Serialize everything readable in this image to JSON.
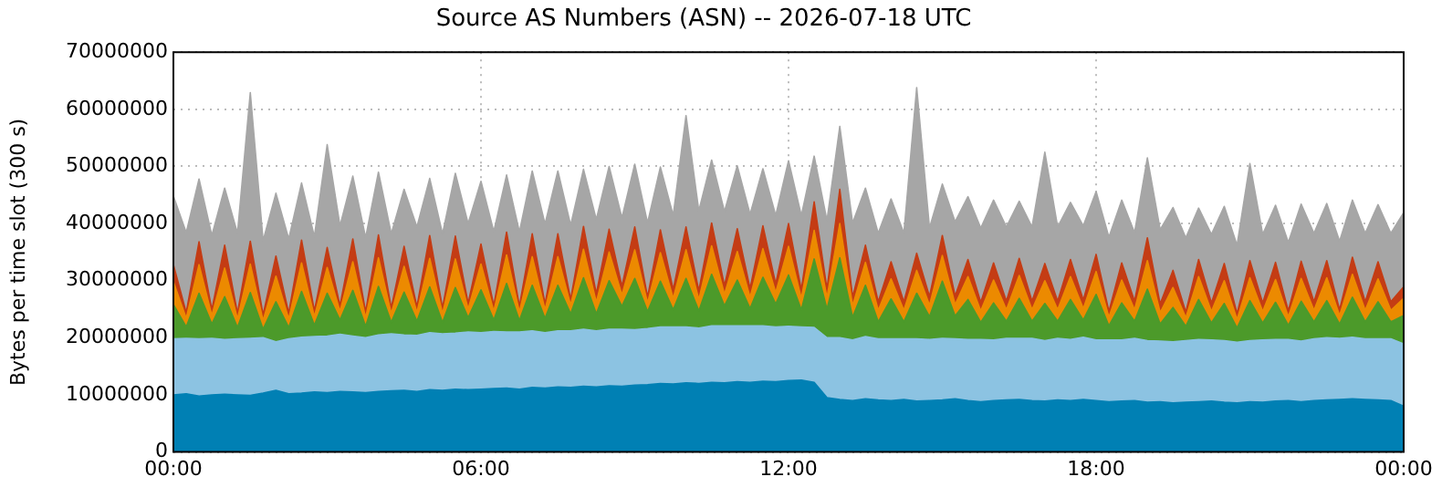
{
  "chart_data": {
    "type": "area",
    "stacked": true,
    "title": "Source AS Numbers (ASN) -- 2026-07-18 UTC",
    "ylabel": "Bytes per time slot (300 s)",
    "x": [
      0,
      0.25,
      0.5,
      0.75,
      1,
      1.25,
      1.5,
      1.75,
      2,
      2.25,
      2.5,
      2.75,
      3,
      3.25,
      3.5,
      3.75,
      4,
      4.25,
      4.5,
      4.75,
      5,
      5.25,
      5.5,
      5.75,
      6,
      6.25,
      6.5,
      6.75,
      7,
      7.25,
      7.5,
      7.75,
      8,
      8.25,
      8.5,
      8.75,
      9,
      9.25,
      9.5,
      9.75,
      10,
      10.25,
      10.5,
      10.75,
      11,
      11.25,
      11.5,
      11.75,
      12,
      12.25,
      12.5,
      12.75,
      13,
      13.25,
      13.5,
      13.75,
      14,
      14.25,
      14.5,
      14.75,
      15,
      15.25,
      15.5,
      15.75,
      16,
      16.25,
      16.5,
      16.75,
      17,
      17.25,
      17.5,
      17.75,
      18,
      18.25,
      18.5,
      18.75,
      19,
      19.25,
      19.5,
      19.75,
      20,
      20.25,
      20.5,
      20.75,
      21,
      21.25,
      21.5,
      21.75,
      22,
      22.25,
      22.5,
      22.75,
      23,
      23.25,
      23.5,
      23.75,
      24
    ],
    "series": [
      {
        "color": "#0080b4",
        "values": [
          10000000.0,
          10200000.0,
          9800000.0,
          10000000.0,
          10100000.0,
          10000000.0,
          9900000.0,
          10300000.0,
          10800000.0,
          10200000.0,
          10300000.0,
          10500000.0,
          10400000.0,
          10600000.0,
          10500000.0,
          10400000.0,
          10600000.0,
          10700000.0,
          10800000.0,
          10600000.0,
          10900000.0,
          10800000.0,
          11000000.0,
          10900000.0,
          11000000.0,
          11100000.0,
          11200000.0,
          11000000.0,
          11300000.0,
          11200000.0,
          11400000.0,
          11300000.0,
          11500000.0,
          11400000.0,
          11600000.0,
          11500000.0,
          11700000.0,
          11800000.0,
          12000000.0,
          11900000.0,
          12100000.0,
          12000000.0,
          12200000.0,
          12100000.0,
          12300000.0,
          12200000.0,
          12400000.0,
          12300000.0,
          12500000.0,
          12600000.0,
          12200000.0,
          9500000.0,
          9200000.0,
          9000000.0,
          9300000.0,
          9100000.0,
          9000000.0,
          9200000.0,
          8900000.0,
          9000000.0,
          9100000.0,
          9300000.0,
          9000000.0,
          8800000.0,
          9000000.0,
          9100000.0,
          9200000.0,
          9000000.0,
          8900000.0,
          9100000.0,
          9000000.0,
          9200000.0,
          9000000.0,
          8800000.0,
          8900000.0,
          9000000.0,
          8700000.0,
          8800000.0,
          8600000.0,
          8700000.0,
          8800000.0,
          8900000.0,
          8700000.0,
          8600000.0,
          8800000.0,
          8700000.0,
          8900000.0,
          9000000.0,
          8800000.0,
          9000000.0,
          9100000.0,
          9200000.0,
          9300000.0,
          9200000.0,
          9100000.0,
          9000000.0,
          8000000.0
        ]
      },
      {
        "color": "#8cc3e2",
        "values": [
          9800000.0,
          9700000.0,
          10000000.0,
          9900000.0,
          9600000.0,
          9800000.0,
          10000000.0,
          9700000.0,
          8500000.0,
          9600000.0,
          9800000.0,
          9700000.0,
          9900000.0,
          10000000.0,
          9800000.0,
          9600000.0,
          9900000.0,
          10000000.0,
          9700000.0,
          9800000.0,
          10000000.0,
          9900000.0,
          9800000.0,
          10100000.0,
          9900000.0,
          10000000.0,
          9800000.0,
          10000000.0,
          9900000.0,
          9700000.0,
          9800000.0,
          9900000.0,
          10000000.0,
          9800000.0,
          9900000.0,
          10000000.0,
          9700000.0,
          9800000.0,
          9900000.0,
          10000000.0,
          9800000.0,
          9700000.0,
          9900000.0,
          10000000.0,
          9800000.0,
          9900000.0,
          9700000.0,
          9600000.0,
          9500000.0,
          9300000.0,
          9600000.0,
          10500000.0,
          10800000.0,
          10600000.0,
          10900000.0,
          10700000.0,
          10800000.0,
          10600000.0,
          10900000.0,
          10700000.0,
          10800000.0,
          10500000.0,
          10700000.0,
          10900000.0,
          10600000.0,
          10800000.0,
          10700000.0,
          10900000.0,
          10600000.0,
          10800000.0,
          10700000.0,
          10900000.0,
          10600000.0,
          10800000.0,
          10700000.0,
          10900000.0,
          10800000.0,
          10600000.0,
          10700000.0,
          10800000.0,
          10900000.0,
          10700000.0,
          10800000.0,
          10600000.0,
          10700000.0,
          10900000.0,
          10800000.0,
          10700000.0,
          10600000.0,
          10800000.0,
          10900000.0,
          10700000.0,
          10800000.0,
          10600000.0,
          10700000.0,
          10800000.0,
          10900000.0
        ]
      },
      {
        "color": "#4c9a2a",
        "values": [
          6000000.0,
          2000000.0,
          8000000.0,
          2500000.0,
          7500000.0,
          2000000.0,
          8000000.0,
          1500000.0,
          7000000.0,
          2000000.0,
          8000000.0,
          2000000.0,
          7500000.0,
          2500000.0,
          8000000.0,
          2000000.0,
          8500000.0,
          2000000.0,
          7500000.0,
          2500000.0,
          8000000.0,
          2000000.0,
          8000000.0,
          2500000.0,
          7500000.0,
          2000000.0,
          8500000.0,
          2000000.0,
          8000000.0,
          2500000.0,
          8000000.0,
          3000000.0,
          9000000.0,
          3000000.0,
          8500000.0,
          4000000.0,
          9000000.0,
          3000000.0,
          8000000.0,
          3000000.0,
          8500000.0,
          3000000.0,
          9000000.0,
          3500000.0,
          8000000.0,
          3000000.0,
          8500000.0,
          4000000.0,
          9000000.0,
          3000000.0,
          12000000.0,
          5000000.0,
          14000000.0,
          4000000.0,
          9000000.0,
          3000000.0,
          7000000.0,
          3000000.0,
          8000000.0,
          4000000.0,
          10000000.0,
          4000000.0,
          7000000.0,
          3000000.0,
          6500000.0,
          3000000.0,
          7000000.0,
          3000000.0,
          6500000.0,
          3000000.0,
          7000000.0,
          3000000.0,
          8000000.0,
          2500000.0,
          6500000.0,
          3000000.0,
          9000000.0,
          3000000.0,
          6000000.0,
          2500000.0,
          7000000.0,
          3000000.0,
          6500000.0,
          2500000.0,
          7000000.0,
          3000000.0,
          6500000.0,
          2500000.0,
          7000000.0,
          3000000.0,
          6500000.0,
          2500000.0,
          7000000.0,
          3000000.0,
          6500000.0,
          3000000.0,
          5000000.0
        ]
      },
      {
        "color": "#ec8a00",
        "values": [
          4000000.0,
          1500000.0,
          5000000.0,
          1500000.0,
          5000000.0,
          1500000.0,
          5000000.0,
          1500000.0,
          4500000.0,
          1500000.0,
          5000000.0,
          1500000.0,
          4500000.0,
          1500000.0,
          5000000.0,
          1500000.0,
          5000000.0,
          1500000.0,
          4500000.0,
          1500000.0,
          5000000.0,
          1500000.0,
          5000000.0,
          1500000.0,
          4500000.0,
          1500000.0,
          5000000.0,
          1500000.0,
          5000000.0,
          1500000.0,
          5000000.0,
          1500000.0,
          5000000.0,
          2000000.0,
          5000000.0,
          2000000.0,
          5000000.0,
          1500000.0,
          5000000.0,
          2000000.0,
          5000000.0,
          2000000.0,
          5000000.0,
          2000000.0,
          5000000.0,
          2000000.0,
          5000000.0,
          2000000.0,
          5000000.0,
          2000000.0,
          5000000.0,
          2000000.0,
          6000000.0,
          2000000.0,
          4000000.0,
          2000000.0,
          3500000.0,
          2000000.0,
          4000000.0,
          2000000.0,
          4500000.0,
          2000000.0,
          4000000.0,
          2000000.0,
          4000000.0,
          2000000.0,
          4000000.0,
          2000000.0,
          4000000.0,
          2000000.0,
          4000000.0,
          2000000.0,
          4000000.0,
          1500000.0,
          4000000.0,
          2000000.0,
          5000000.0,
          2000000.0,
          3500000.0,
          1500000.0,
          4000000.0,
          2000000.0,
          4000000.0,
          1500000.0,
          4000000.0,
          2000000.0,
          4000000.0,
          1500000.0,
          4000000.0,
          2000000.0,
          4000000.0,
          1500000.0,
          4000000.0,
          2000000.0,
          4000000.0,
          2000000.0,
          3000000.0
        ]
      },
      {
        "color": "#c43c14",
        "values": [
          3000000.0,
          1000000.0,
          4000000.0,
          1000000.0,
          4000000.0,
          1000000.0,
          4000000.0,
          1000000.0,
          3500000.0,
          1000000.0,
          4000000.0,
          1000000.0,
          3500000.0,
          1000000.0,
          4000000.0,
          1000000.0,
          4000000.0,
          1000000.0,
          3500000.0,
          1000000.0,
          4000000.0,
          1000000.0,
          4000000.0,
          1000000.0,
          3500000.0,
          1000000.0,
          4000000.0,
          1000000.0,
          4000000.0,
          1000000.0,
          4000000.0,
          1000000.0,
          4000000.0,
          1500000.0,
          4000000.0,
          1500000.0,
          4000000.0,
          1000000.0,
          4000000.0,
          1500000.0,
          4000000.0,
          1500000.0,
          4000000.0,
          1500000.0,
          4000000.0,
          1500000.0,
          4000000.0,
          1500000.0,
          4000000.0,
          1500000.0,
          5000000.0,
          1500000.0,
          6000000.0,
          1500000.0,
          3000000.0,
          1500000.0,
          3000000.0,
          1500000.0,
          3000000.0,
          1500000.0,
          3500000.0,
          1500000.0,
          3000000.0,
          1500000.0,
          3000000.0,
          1500000.0,
          3000000.0,
          1500000.0,
          3000000.0,
          1500000.0,
          3000000.0,
          1500000.0,
          3000000.0,
          1000000.0,
          3000000.0,
          1500000.0,
          4000000.0,
          1500000.0,
          3000000.0,
          1000000.0,
          3000000.0,
          1500000.0,
          3000000.0,
          1000000.0,
          3000000.0,
          1500000.0,
          3000000.0,
          1000000.0,
          3000000.0,
          1500000.0,
          3000000.0,
          1000000.0,
          3000000.0,
          1500000.0,
          3000000.0,
          1500000.0,
          2000000.0
        ]
      },
      {
        "color": "#a6a6a6",
        "values": [
          12000000.0,
          14000000.0,
          11000000.0,
          13000000.0,
          10000000.0,
          14000000.0,
          26000000.0,
          13000000.0,
          11000000.0,
          13000000.0,
          10000000.0,
          13000000.0,
          18000000.0,
          14000000.0,
          11000000.0,
          13000000.0,
          11000000.0,
          13000000.0,
          10000000.0,
          14000000.0,
          10000000.0,
          13000000.0,
          11000000.0,
          14000000.0,
          11000000.0,
          13000000.0,
          10000000.0,
          13000000.0,
          11000000.0,
          14000000.0,
          11000000.0,
          13000000.0,
          10000000.0,
          13000000.0,
          11000000.0,
          12000000.0,
          11000000.0,
          13000000.0,
          11000000.0,
          13000000.0,
          19500000.0,
          14000000.0,
          11000000.0,
          13000000.0,
          11000000.0,
          13000000.0,
          10000000.0,
          12000000.0,
          11000000.0,
          13000000.0,
          8000000.0,
          12000000.0,
          11000000.0,
          13000000.0,
          10000000.0,
          12000000.0,
          11000000.0,
          12000000.0,
          29000000.0,
          12000000.0,
          9000000.0,
          13000000.0,
          11000000.0,
          13000000.0,
          11000000.0,
          13000000.0,
          10000000.0,
          13000000.0,
          19500000.0,
          13000000.0,
          10000000.0,
          13000000.0,
          11000000.0,
          13000000.0,
          11000000.0,
          12000000.0,
          14000000.0,
          13000000.0,
          11000000.0,
          13000000.0,
          9000000.0,
          12000000.0,
          10000000.0,
          12000000.0,
          17000000.0,
          12000000.0,
          10000000.0,
          12000000.0,
          10000000.0,
          12000000.0,
          10000000.0,
          12000000.0,
          10000000.0,
          12000000.0,
          10000000.0,
          12000000.0,
          13000000.0
        ]
      }
    ],
    "xlim": [
      0,
      24
    ],
    "xticks": [
      {
        "value": 0,
        "label": "00:00"
      },
      {
        "value": 6,
        "label": "06:00"
      },
      {
        "value": 12,
        "label": "12:00"
      },
      {
        "value": 18,
        "label": "18:00"
      },
      {
        "value": 24,
        "label": "00:00"
      }
    ],
    "ylim": [
      0,
      70000000
    ],
    "yticks": [
      0,
      10000000,
      20000000,
      30000000,
      40000000,
      50000000,
      60000000,
      70000000
    ],
    "grid": true,
    "legend": false
  }
}
